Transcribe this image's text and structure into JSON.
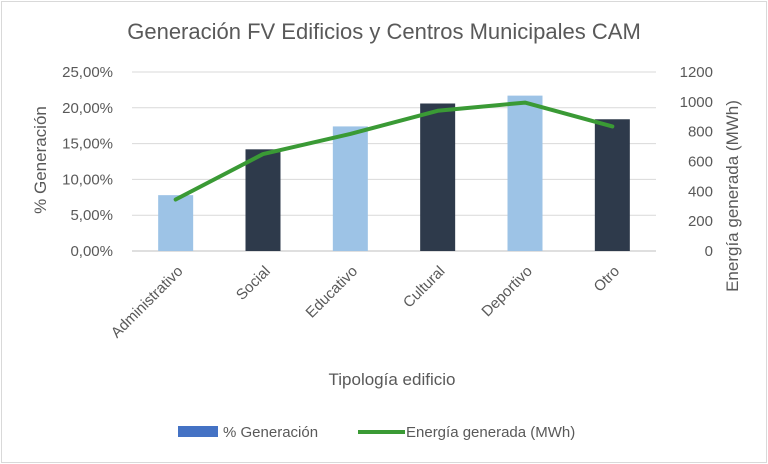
{
  "chart_data": {
    "type": "bar",
    "title": "Generación FV Edificios y Centros Municipales CAM",
    "xlabel": "Tipología edificio",
    "ylabel": "% Generación",
    "y2label": "Energía generada (MWh)",
    "categories": [
      "Administrativo",
      "Social",
      "Educativo",
      "Cultural",
      "Deportivo",
      "Otro"
    ],
    "ylim": [
      0,
      25
    ],
    "yticks": [
      0,
      5,
      10,
      15,
      20,
      25
    ],
    "ytick_labels": [
      "0,00%",
      "5,00%",
      "10,00%",
      "15,00%",
      "20,00%",
      "25,00%"
    ],
    "y2lim": [
      0,
      1200
    ],
    "y2ticks": [
      0,
      200,
      400,
      600,
      800,
      1000,
      1200
    ],
    "y2tick_labels": [
      "0",
      "200",
      "400",
      "600",
      "800",
      "1000",
      "1200"
    ],
    "grid": true,
    "legend_position": "bottom",
    "series": [
      {
        "name": "% Generación",
        "kind": "bar",
        "axis": "left",
        "values": [
          7.8,
          14.2,
          17.4,
          20.6,
          21.7,
          18.4
        ],
        "colors": [
          "#9dc3e6",
          "#2e3a4b",
          "#9dc3e6",
          "#2e3a4b",
          "#9dc3e6",
          "#2e3a4b"
        ],
        "legend_color": "#4472c4"
      },
      {
        "name": "Energía generada (MWh)",
        "kind": "line",
        "axis": "right",
        "values": [
          345,
          650,
          785,
          940,
          995,
          835
        ],
        "color": "#3a9a35"
      }
    ]
  }
}
